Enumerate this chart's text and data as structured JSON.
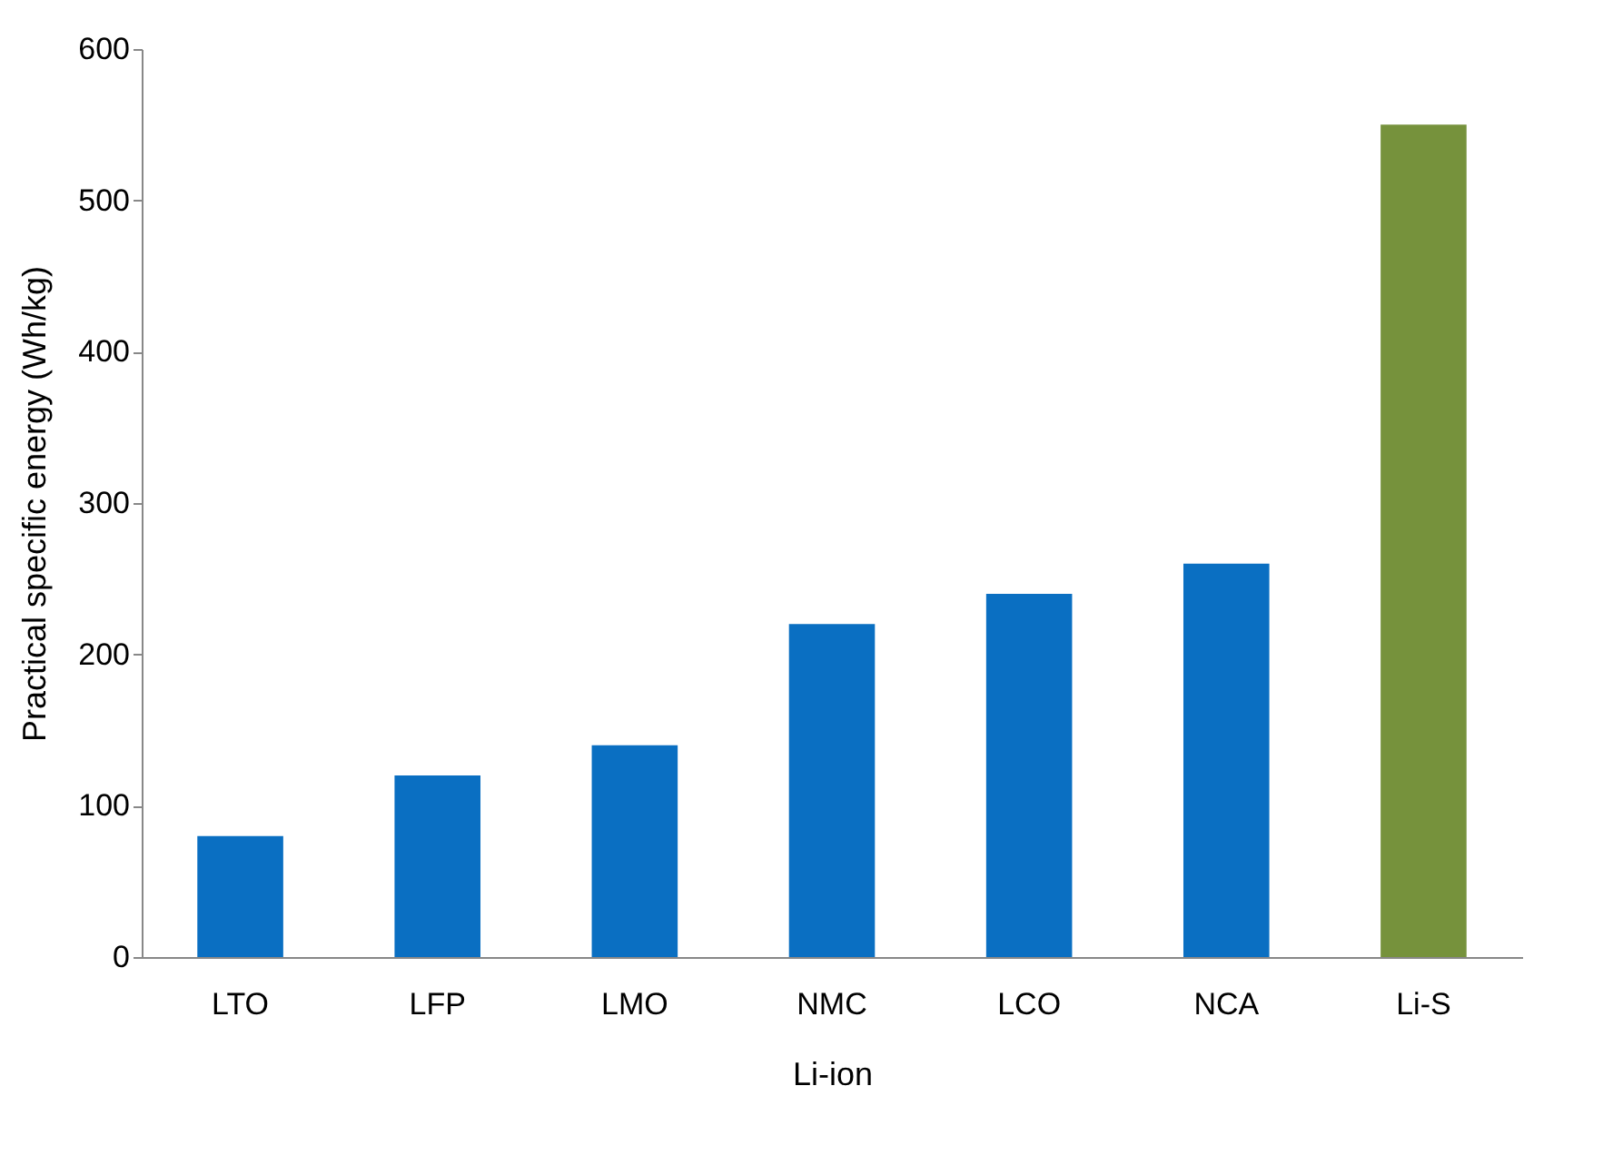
{
  "chart_data": {
    "type": "bar",
    "categories": [
      "LTO",
      "LFP",
      "LMO",
      "NMC",
      "LCO",
      "NCA",
      "Li-S"
    ],
    "values": [
      80,
      120,
      140,
      220,
      240,
      260,
      550
    ],
    "colors": [
      "#0a6fc2",
      "#0a6fc2",
      "#0a6fc2",
      "#0a6fc2",
      "#0a6fc2",
      "#0a6fc2",
      "#76923c"
    ],
    "xlabel": "Li-ion",
    "ylabel": "Practical specific energy (Wh/kg)",
    "ylim": [
      0,
      600
    ],
    "yticks": [
      0,
      100,
      200,
      300,
      400,
      500,
      600
    ],
    "grid": false
  }
}
